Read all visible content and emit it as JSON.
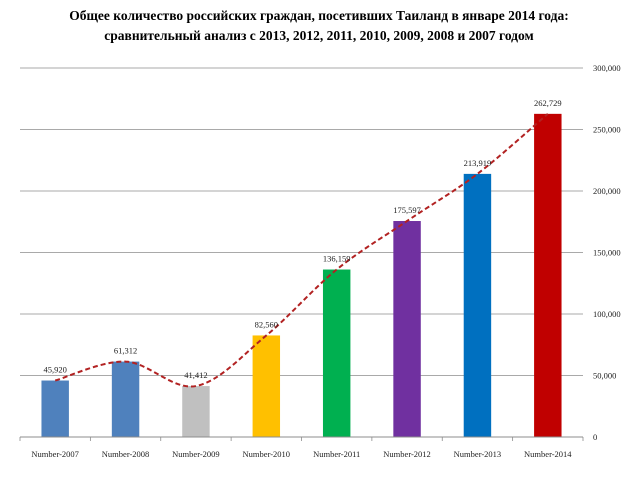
{
  "chart_data": {
    "type": "bar",
    "title_lines": [
      "Общее количество российских граждан, посетивших Таиланд в январе 2014 года:",
      "сравнительный анализ с 2013, 2012, 2011, 2010, 2009, 2008 и 2007 годом"
    ],
    "categories": [
      "Number-2007",
      "Number-2008",
      "Number-2009",
      "Number-2010",
      "Number-2011",
      "Number-2012",
      "Number-2013",
      "Number-2014"
    ],
    "values": [
      45920,
      61312,
      41412,
      82560,
      136159,
      175597,
      213919,
      262729
    ],
    "value_labels": [
      "45,920",
      "61,312",
      "41,412",
      "82,560",
      "136,159",
      "175,597",
      "213,919",
      "262,729"
    ],
    "bar_colors": [
      "#4f81bd",
      "#4f81bd",
      "#c0c0c0",
      "#ffc000",
      "#00b050",
      "#7030a0",
      "#0070c0",
      "#c00000"
    ],
    "trendline": {
      "style": "dashed",
      "smooth": true,
      "color": "#b22222"
    },
    "y_axis": {
      "position": "right",
      "ylim": [
        0,
        300000
      ],
      "ticks": [
        0,
        50000,
        100000,
        150000,
        200000,
        250000,
        300000
      ],
      "tick_labels": [
        "0",
        "50,000",
        "100,000",
        "150,000",
        "200,000",
        "250,000",
        "300,000"
      ]
    },
    "grid": true,
    "legend": "none"
  }
}
